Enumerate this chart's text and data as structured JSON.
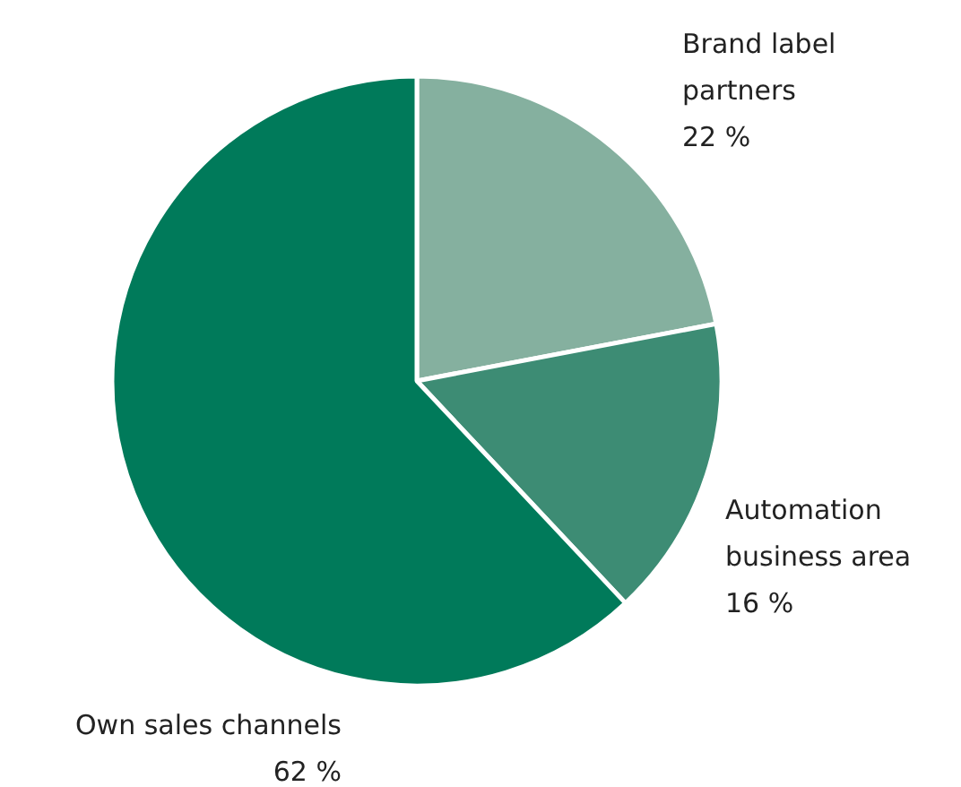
{
  "chart_data": {
    "type": "pie",
    "categories": [
      "Brand label\npartners",
      "Automation\nbusiness area",
      "Own sales channels"
    ],
    "values": [
      22,
      16,
      62
    ],
    "value_labels": [
      "22 %",
      "16 %",
      "62 %"
    ],
    "colors": [
      "#85b09f",
      "#3d8c74",
      "#007a5a"
    ]
  }
}
